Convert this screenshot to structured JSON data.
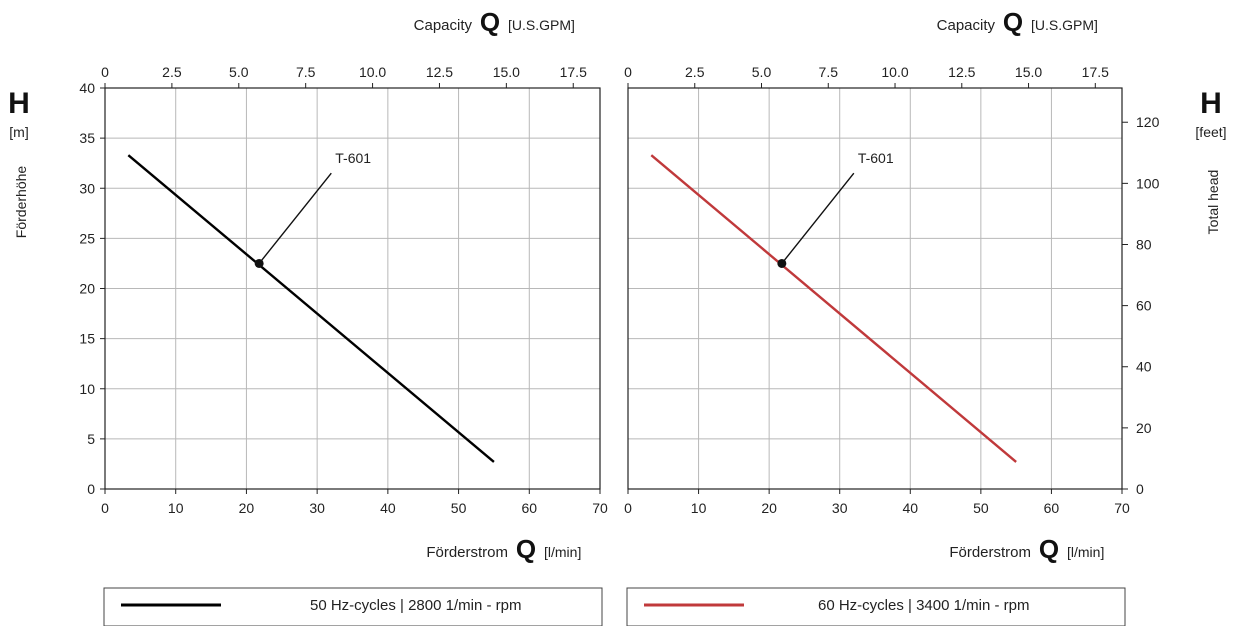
{
  "left_axis": {
    "symbol": "H",
    "unit": "[m]",
    "label": "Förderhöhe"
  },
  "right_axis": {
    "symbol": "H",
    "unit": "[feet]",
    "label": "Total head"
  },
  "top_axis": {
    "label": "Capacity",
    "symbol": "Q",
    "unit": "[U.S.GPM]"
  },
  "bottom_axis": {
    "label": "Förderstrom",
    "symbol": "Q",
    "unit": "[l/min]"
  },
  "legend": {
    "left": {
      "text": "50 Hz-cycles | 2800 1/min - rpm",
      "color": "#000000"
    },
    "right": {
      "text": "60 Hz-cycles | 3400 1/min - rpm",
      "color": "#c0393b"
    }
  },
  "chart_data": [
    {
      "type": "line",
      "x_label": "Förderstrom Q [l/min]",
      "x2_label": "Capacity Q [U.S.GPM]",
      "y_label": "Förderhöhe H [m]",
      "xlim": [
        0,
        70
      ],
      "x_ticks": [
        "0",
        "10",
        "20",
        "30",
        "40",
        "50",
        "60",
        "70"
      ],
      "x2lim": [
        0,
        18.5
      ],
      "x2_ticks": [
        "0",
        "2.5",
        "5.0",
        "7.5",
        "10.0",
        "12.5",
        "15.0",
        "17.5"
      ],
      "ylim": [
        0,
        40
      ],
      "y_ticks": [
        "0",
        "5",
        "10",
        "15",
        "20",
        "25",
        "30",
        "35",
        "40"
      ],
      "grid": true,
      "series": [
        {
          "color": "#000000",
          "x": [
            3.3,
            55
          ],
          "y": [
            33.3,
            2.7
          ]
        }
      ],
      "annotation": {
        "text": "T-601",
        "point": [
          21.8,
          22.5
        ],
        "text_at": [
          32,
          31.5
        ]
      },
      "legend": [
        "50 Hz-cycles | 2800 1/min - rpm"
      ]
    },
    {
      "type": "line",
      "x_label": "Förderstrom Q [l/min]",
      "x2_label": "Capacity Q [U.S.GPM]",
      "y_label": "Total head H [feet]",
      "xlim": [
        0,
        70
      ],
      "x_ticks": [
        "0",
        "10",
        "20",
        "30",
        "40",
        "50",
        "60",
        "70"
      ],
      "x2lim": [
        0,
        18.5
      ],
      "x2_ticks": [
        "0",
        "2.5",
        "5.0",
        "7.5",
        "10.0",
        "12.5",
        "15.0",
        "17.5"
      ],
      "ylim": [
        0,
        40
      ],
      "y2lim": [
        0,
        131.2
      ],
      "y2_ticks": [
        "0",
        "20",
        "40",
        "60",
        "80",
        "100",
        "120"
      ],
      "grid": true,
      "series": [
        {
          "color": "#c0393b",
          "x": [
            3.3,
            55
          ],
          "y": [
            33.3,
            2.7
          ]
        }
      ],
      "annotation": {
        "text": "T-601",
        "point": [
          21.8,
          22.5
        ],
        "text_at": [
          32,
          31.5
        ]
      },
      "legend": [
        "60 Hz-cycles | 3400 1/min - rpm"
      ]
    }
  ]
}
